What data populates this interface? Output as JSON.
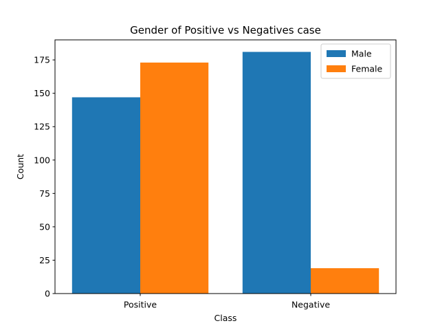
{
  "chart_data": {
    "type": "bar",
    "title": "Gender of Positive vs Negatives case",
    "xlabel": "Class",
    "ylabel": "Count",
    "categories": [
      "Positive",
      "Negative"
    ],
    "series": [
      {
        "name": "Male",
        "values": [
          147,
          181
        ],
        "color": "#1f77b4"
      },
      {
        "name": "Female",
        "values": [
          173,
          19
        ],
        "color": "#ff7f0e"
      }
    ],
    "ylim": [
      0,
      190
    ],
    "yticks": [
      0,
      25,
      50,
      75,
      100,
      125,
      150,
      175
    ],
    "legend_position": "top-right",
    "grid": false
  }
}
